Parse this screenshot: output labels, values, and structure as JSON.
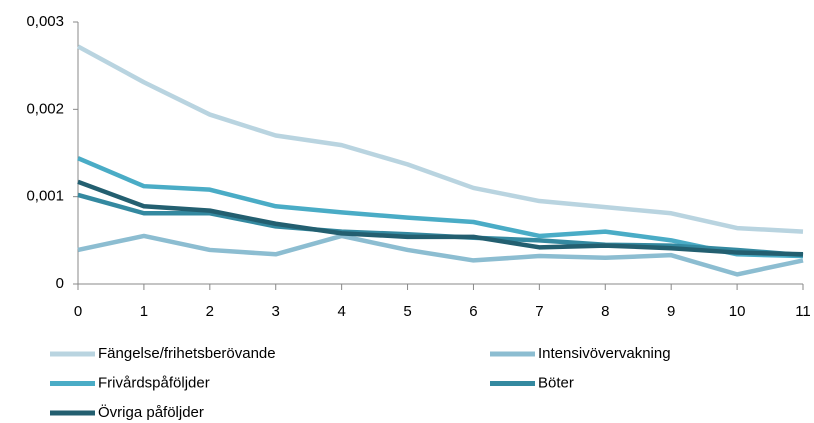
{
  "chart_data": {
    "type": "line",
    "x": [
      0,
      1,
      2,
      3,
      4,
      5,
      6,
      7,
      8,
      9,
      10,
      11
    ],
    "xlim": [
      0,
      11
    ],
    "xticks": [
      0,
      1,
      2,
      3,
      4,
      5,
      6,
      7,
      8,
      9,
      10,
      11
    ],
    "ylim": [
      0,
      0.003
    ],
    "yticks": [
      0,
      {
        "value": 0.001,
        "label": "0,001"
      },
      {
        "value": 0.002,
        "label": "0,002"
      },
      {
        "value": 0.003,
        "label": "0,003"
      }
    ],
    "grid": false,
    "series": [
      {
        "name": "Fängelse/frihetsberövande",
        "color": "#b9d4e0",
        "values": [
          0.00272,
          0.00231,
          0.00194,
          0.0017,
          0.00159,
          0.00137,
          0.0011,
          0.00095,
          0.00088,
          0.00081,
          0.00064,
          0.0006
        ]
      },
      {
        "name": "Intensivövervakning",
        "color": "#8cbdd1",
        "values": [
          0.00039,
          0.00055,
          0.00039,
          0.00034,
          0.00055,
          0.00039,
          0.00027,
          0.00032,
          0.0003,
          0.00033,
          0.00011,
          0.00027
        ]
      },
      {
        "name": "Frivårdspåföljder",
        "color": "#4aacc6",
        "values": [
          0.00144,
          0.00112,
          0.00108,
          0.00089,
          0.00082,
          0.00076,
          0.00071,
          0.00055,
          0.0006,
          0.0005,
          0.00034,
          0.00032
        ]
      },
      {
        "name": "Böter",
        "color": "#3489a0",
        "values": [
          0.00102,
          0.00081,
          0.00081,
          0.00066,
          0.0006,
          0.00057,
          0.00053,
          0.0005,
          0.00045,
          0.00044,
          0.00039,
          0.00033
        ]
      },
      {
        "name": "Övriga påföljder",
        "color": "#235f70",
        "values": [
          0.00117,
          0.00089,
          0.00084,
          0.00069,
          0.00058,
          0.00054,
          0.00054,
          0.00042,
          0.00044,
          0.00041,
          0.00036,
          0.00034
        ]
      }
    ]
  }
}
